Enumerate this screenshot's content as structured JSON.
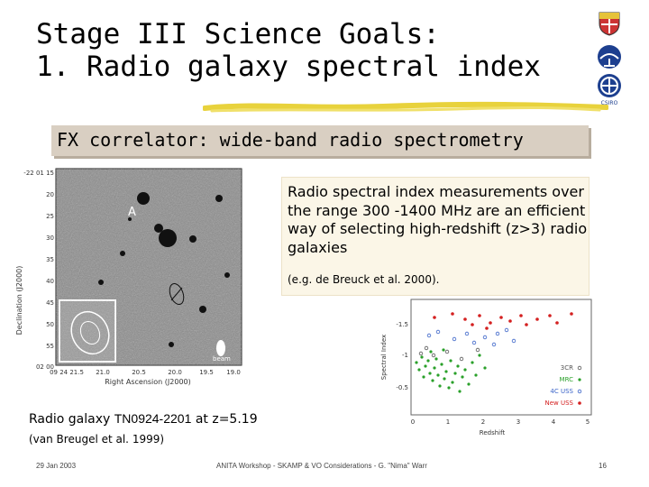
{
  "title": {
    "line1": "Stage III Science Goals:",
    "line2": "1. Radio galaxy spectral index"
  },
  "subtitle": "FX correlator: wide-band radio spectrometry",
  "description": {
    "main": "Radio spectral index measurements over the range 300 -1400 MHz are an efficient way of selecting high-redshift (z>3) radio galaxies",
    "reference": "(e.g. de Breuck et al. 2000)."
  },
  "left_figure": {
    "y_axis_label": "Declination (J2000)",
    "x_axis_label": "Right Ascension (J2000)",
    "dec_ticks": [
      "-22 01 15",
      "20",
      "25",
      "30",
      "35",
      "40",
      "45",
      "50",
      "55",
      "02 00"
    ],
    "ra_ticks": [
      "09 24 21.5",
      "21.0",
      "20.5",
      "20.0",
      "19.5",
      "19.0"
    ],
    "marker_a": "A",
    "beam_label": "beam"
  },
  "right_chart": {
    "y_axis_label": "Spectral Index",
    "x_axis_label": "Redshift",
    "y_ticks": [
      "-1.5",
      "-1",
      "-0.5"
    ],
    "x_ticks": [
      "0",
      "1",
      "2",
      "3",
      "4",
      "5"
    ],
    "legend": [
      {
        "label": "3CR",
        "color": "#555555"
      },
      {
        "label": "MRC",
        "color": "#2aa02a"
      },
      {
        "label": "4C USS",
        "color": "#3a63c8"
      },
      {
        "label": "New USS",
        "color": "#d42020"
      }
    ]
  },
  "caption": {
    "prefix": "Radio galaxy ",
    "object": "TN0924-2201",
    "suffix": " at z=5.19",
    "reference": "(van Breugel et al. 1999)"
  },
  "footer": {
    "date": "29 Jan 2003",
    "center": "ANITA Workshop - SKAMP & VO Considerations - G. \"Nima\" Warr",
    "page": "16"
  },
  "logos": {
    "top": "university-crest-icon",
    "middle": "atnf-dish-icon",
    "bottom": "csiro-icon",
    "bottom_text": "CSIRO"
  },
  "colors": {
    "subtitle_box": "#d9cfc2",
    "description_box": "#fbf6e7",
    "underline": "#e8d23c"
  }
}
